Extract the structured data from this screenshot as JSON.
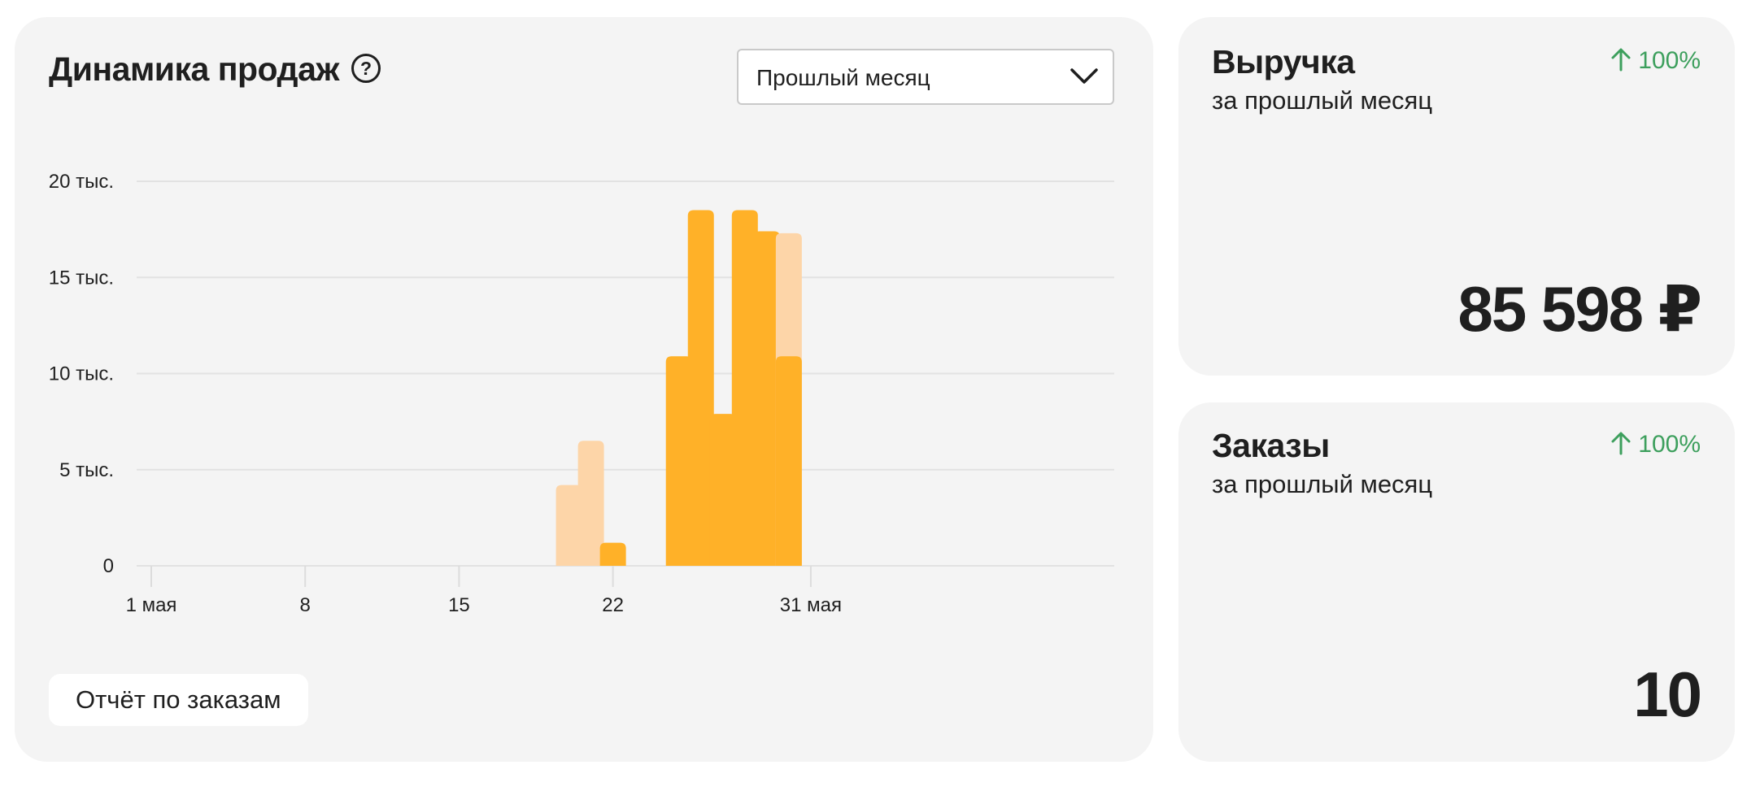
{
  "sales": {
    "title": "Динамика продаж",
    "help_icon": "question-circle-icon",
    "period_select": {
      "value": "Прошлый месяц",
      "icon": "chevron-down-icon"
    },
    "report_button": "Отчёт по заказам"
  },
  "chart_data": {
    "type": "bar",
    "y_ticks": [
      "0",
      "5 тыс.",
      "10 тыс.",
      "15 тыс.",
      "20 тыс."
    ],
    "y_tick_values": [
      0,
      5000,
      10000,
      15000,
      20000
    ],
    "ylim": [
      0,
      20000
    ],
    "x_ticks": [
      "1 мая",
      "8",
      "15",
      "22",
      "31 мая"
    ],
    "x_tick_days": [
      1,
      8,
      15,
      22,
      31
    ],
    "grid": true,
    "colors": {
      "primary": "#ffb128",
      "secondary": "#fdd5a8"
    },
    "bars": [
      {
        "day": 20,
        "series": "secondary",
        "value": 4200
      },
      {
        "day": 21,
        "series": "secondary",
        "value": 6500
      },
      {
        "day": 22,
        "series": "primary",
        "value": 1200
      },
      {
        "day": 25,
        "series": "primary",
        "value": 10900
      },
      {
        "day": 26,
        "series": "primary",
        "value": 18500
      },
      {
        "day": 27,
        "series": "primary",
        "value": 7900
      },
      {
        "day": 28,
        "series": "primary",
        "value": 18500
      },
      {
        "day": 29,
        "series": "primary",
        "value": 17400
      },
      {
        "day": 30,
        "series": "secondary",
        "value": 17300
      },
      {
        "day": 30,
        "series": "primary",
        "value": 10900
      }
    ]
  },
  "revenue": {
    "title": "Выручка",
    "subtitle": "за прошлый месяц",
    "trend": "100%",
    "trend_icon": "arrow-up-icon",
    "value": "85 598 ₽"
  },
  "orders": {
    "title": "Заказы",
    "subtitle": "за прошлый месяц",
    "trend": "100%",
    "trend_icon": "arrow-up-icon",
    "value": "10"
  },
  "colors": {
    "card_bg": "#f4f4f4",
    "trend_green": "#3d9f5d",
    "text": "#1f1f1f"
  }
}
